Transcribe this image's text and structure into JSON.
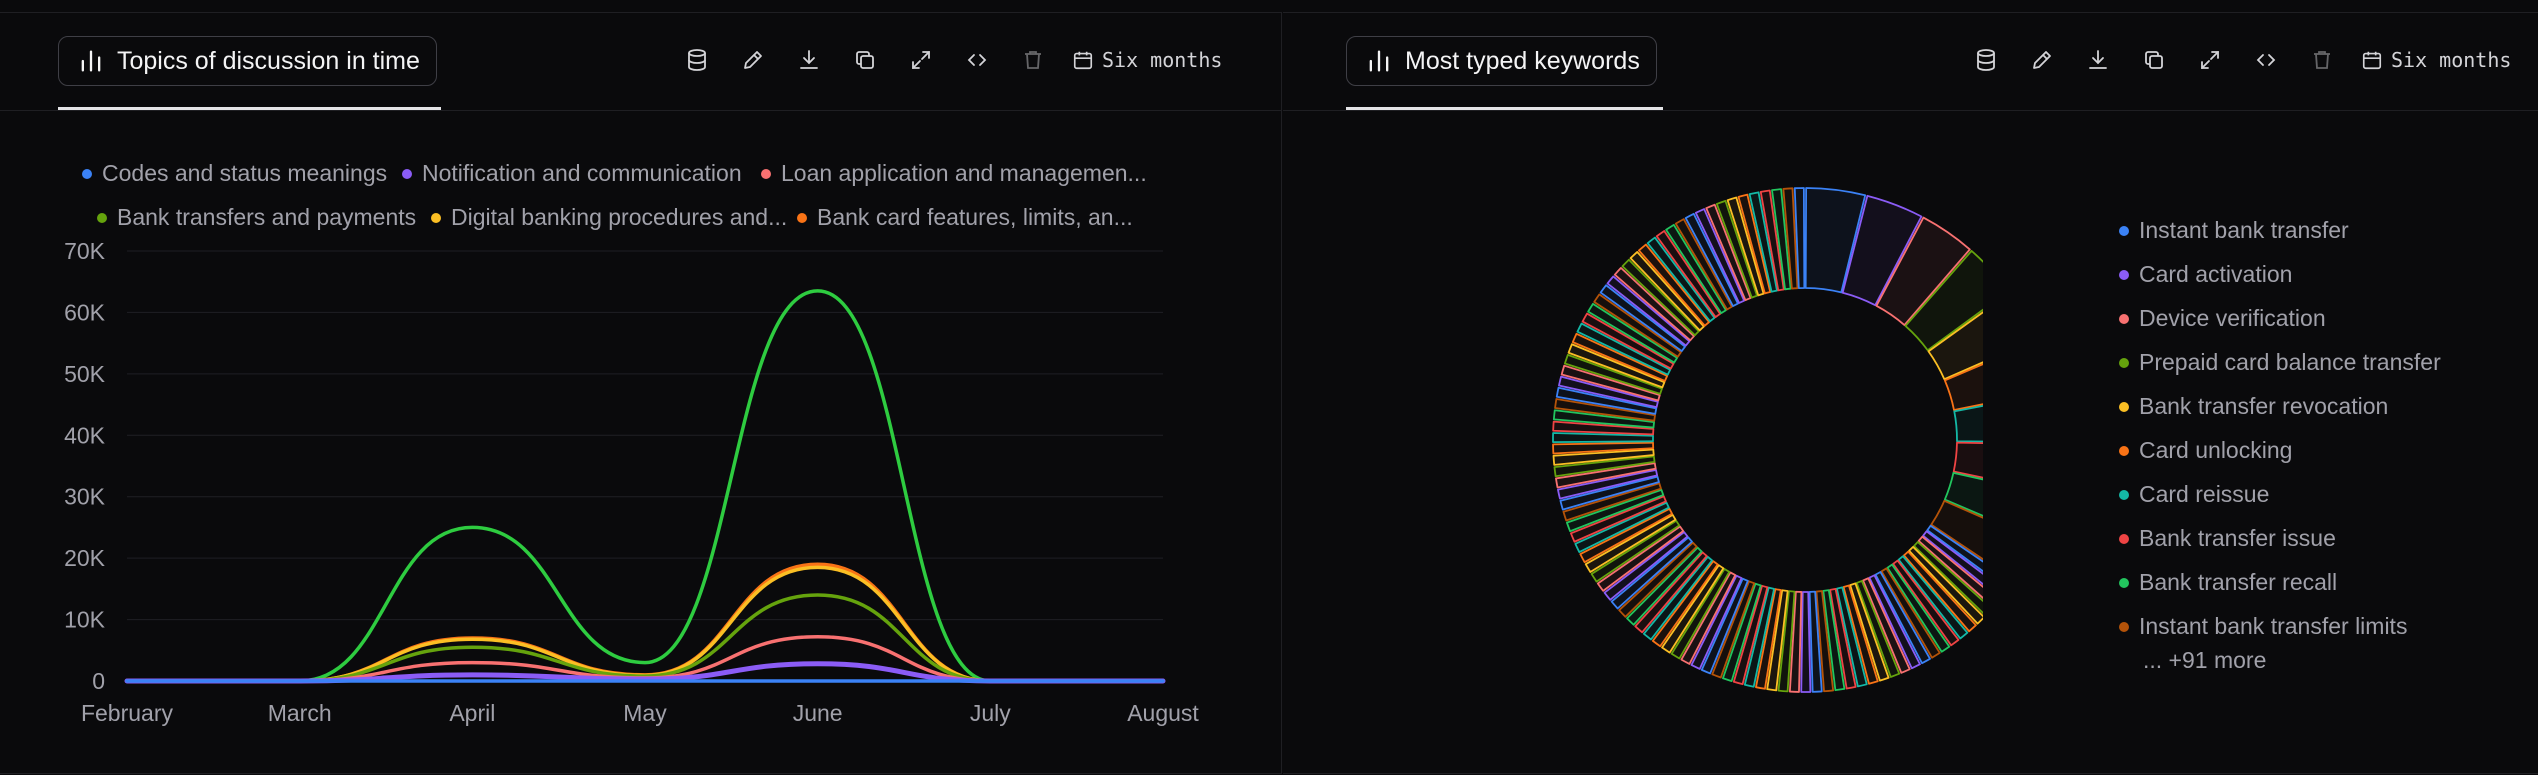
{
  "panels": [
    {
      "title": "Topics of discussion in time",
      "range_label": "Six months",
      "chart_data": {
        "type": "line",
        "x": [
          "February",
          "March",
          "April",
          "May",
          "June",
          "July",
          "August"
        ],
        "ylim": [
          0,
          70000
        ],
        "yticks": [
          0,
          10000,
          20000,
          30000,
          40000,
          50000,
          60000,
          70000
        ],
        "ytick_labels": [
          "0",
          "10K",
          "20K",
          "30K",
          "40K",
          "50K",
          "60K",
          "70K"
        ],
        "grid": true,
        "legend_position": "top",
        "series": [
          {
            "name": "Codes and status meanings",
            "color": "#3b82f6",
            "values": [
              0,
              0,
              0,
              0,
              0,
              0,
              0
            ]
          },
          {
            "name": "Notification and communication",
            "color": "#8b5cf6",
            "values": [
              0,
              0,
              1000,
              300,
              2800,
              0,
              0
            ]
          },
          {
            "name": "Loan application and managemen...",
            "color": "#f87171",
            "values": [
              0,
              0,
              3000,
              500,
              7200,
              0,
              0
            ]
          },
          {
            "name": "Bank transfers and payments",
            "color": "#65a30d",
            "values": [
              0,
              0,
              5500,
              800,
              14000,
              0,
              0
            ]
          },
          {
            "name": "Digital banking procedures and...",
            "color": "#fbbf24",
            "values": [
              0,
              0,
              6800,
              900,
              18500,
              0,
              0
            ]
          },
          {
            "name": "Bank card features, limits, an...",
            "color": "#f97316",
            "values": [
              0,
              0,
              7000,
              1000,
              19000,
              0,
              0
            ]
          },
          {
            "name": "",
            "color": "#2ecc40",
            "values": [
              0,
              0,
              25000,
              3000,
              63500,
              0,
              0
            ]
          }
        ]
      }
    },
    {
      "title": "Most typed keywords",
      "range_label": "Six months",
      "more_label": "... +91 more",
      "chart_data": {
        "type": "pie",
        "legend_position": "right",
        "labels": [
          "Instant bank transfer",
          "Card activation",
          "Device verification",
          "Prepaid card balance transfer",
          "Bank transfer revocation",
          "Card unlocking",
          "Card reissue",
          "Bank transfer issue",
          "Bank transfer recall",
          "Instant bank transfer limits"
        ],
        "values": [
          38,
          37,
          36,
          35,
          34,
          33,
          32,
          31,
          30,
          29
        ],
        "hidden_slices": 91,
        "colors": [
          "#3b82f6",
          "#8b5cf6",
          "#f87171",
          "#65a30d",
          "#fbbf24",
          "#f97316",
          "#14b8a6",
          "#ef4444",
          "#22c55e",
          "#b45309"
        ]
      }
    }
  ]
}
